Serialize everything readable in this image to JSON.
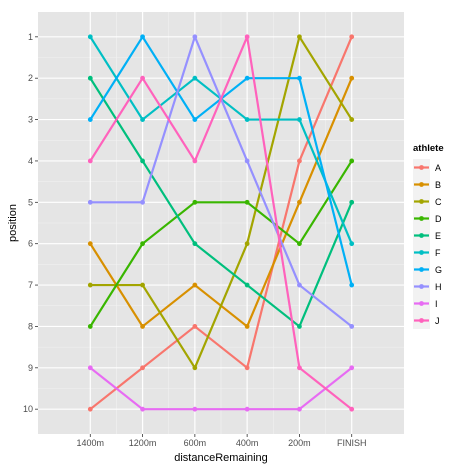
{
  "chart_data": {
    "type": "line",
    "title": "",
    "xlabel": "distanceRemaining",
    "ylabel": "position",
    "categories": [
      "1400m",
      "1200m",
      "600m",
      "400m",
      "200m",
      "FINISH"
    ],
    "y_ticks": [
      "1",
      "2",
      "3",
      "4",
      "5",
      "6",
      "7",
      "8",
      "9",
      "10"
    ],
    "ylim": [
      0.4,
      10.6
    ],
    "y_reversed": true,
    "grid": true,
    "legend_title": "athlete",
    "legend_position": "right",
    "series": [
      {
        "name": "A",
        "color": "#F8766D",
        "values": [
          10,
          9,
          8,
          9,
          4,
          1
        ]
      },
      {
        "name": "B",
        "color": "#D89000",
        "values": [
          6,
          8,
          7,
          8,
          5,
          2
        ]
      },
      {
        "name": "C",
        "color": "#A3A500",
        "values": [
          7,
          7,
          9,
          6,
          1,
          3
        ]
      },
      {
        "name": "D",
        "color": "#39B600",
        "values": [
          8,
          6,
          5,
          5,
          6,
          4
        ]
      },
      {
        "name": "E",
        "color": "#00BF7D",
        "values": [
          2,
          4,
          6,
          7,
          8,
          5
        ]
      },
      {
        "name": "F",
        "color": "#00BFC4",
        "values": [
          1,
          3,
          2,
          3,
          3,
          6
        ]
      },
      {
        "name": "G",
        "color": "#00B0F6",
        "values": [
          3,
          1,
          3,
          2,
          2,
          7
        ]
      },
      {
        "name": "H",
        "color": "#9590FF",
        "values": [
          5,
          5,
          1,
          4,
          7,
          8
        ]
      },
      {
        "name": "I",
        "color": "#E76BF3",
        "values": [
          9,
          10,
          10,
          10,
          10,
          9
        ]
      },
      {
        "name": "J",
        "color": "#FF62BC",
        "values": [
          4,
          2,
          4,
          1,
          9,
          10
        ]
      }
    ]
  }
}
